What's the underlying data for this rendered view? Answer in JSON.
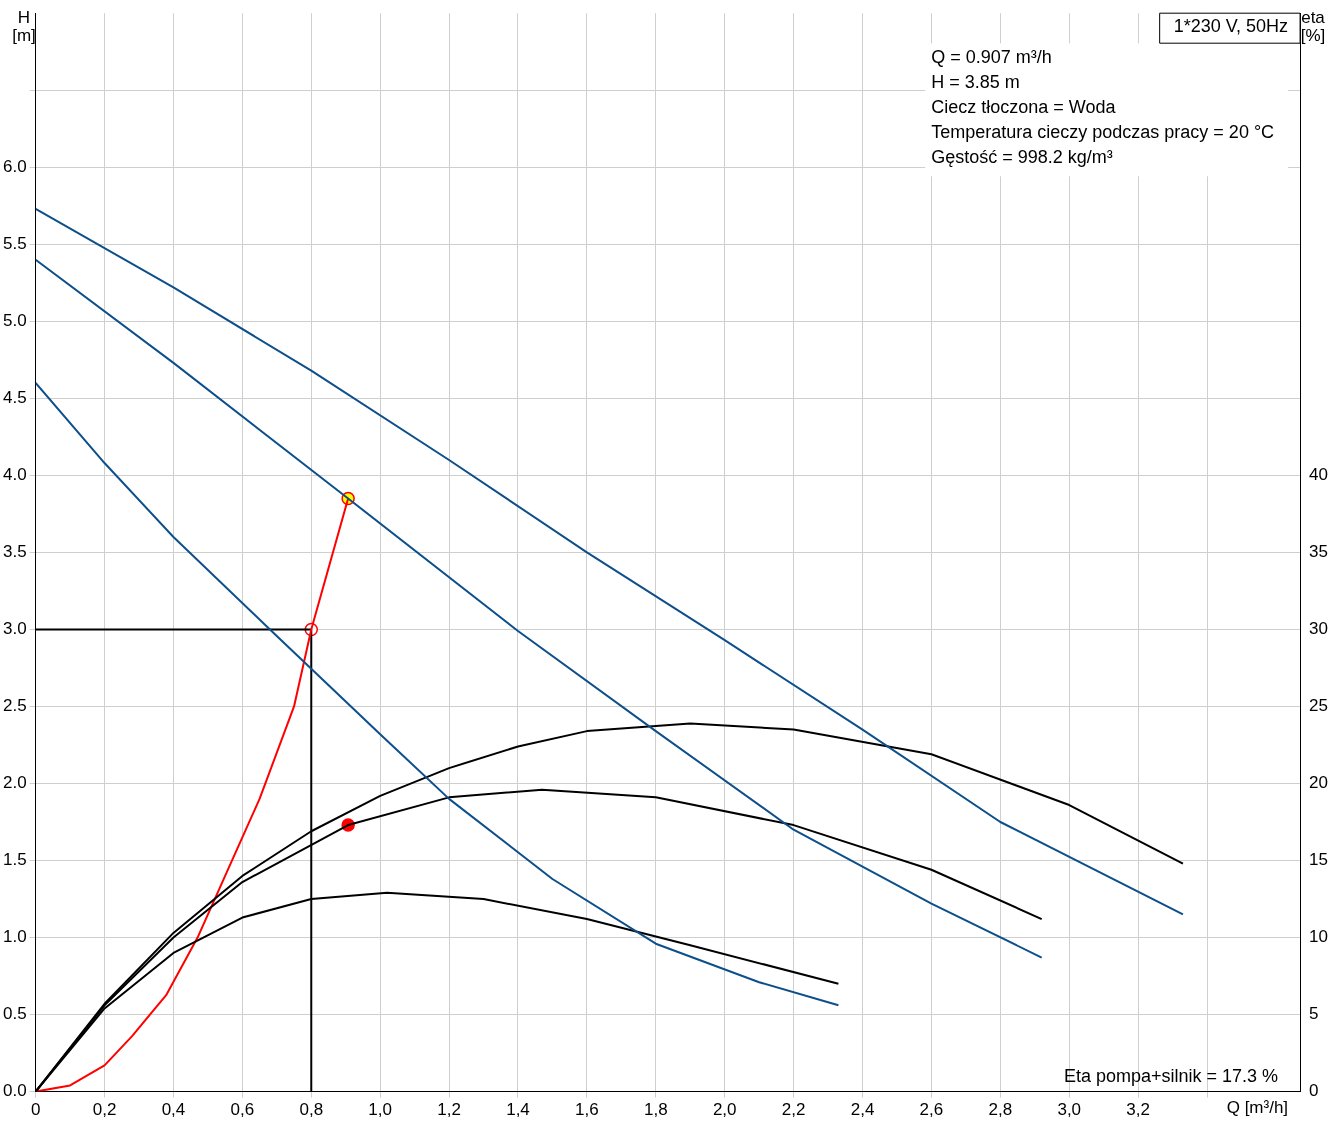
{
  "chart_data": {
    "type": "line",
    "title": "1*230 V, 50Hz",
    "xlabel": "Q [m³/h]",
    "ylabel": "H [m]",
    "y2label": "eta [%]",
    "xlim": [
      0,
      3.67
    ],
    "xticks": [
      0,
      {
        "value": 0.2,
        "label": "0,2"
      },
      {
        "value": 0.4,
        "label": "0,4"
      },
      {
        "value": 0.6,
        "label": "0,6"
      },
      {
        "value": 0.8,
        "label": "0,8"
      },
      {
        "value": 1.0,
        "label": "1,0"
      },
      {
        "value": 1.2,
        "label": "1,2"
      },
      {
        "value": 1.4,
        "label": "1,4"
      },
      {
        "value": 1.6,
        "label": "1,6"
      },
      {
        "value": 1.8,
        "label": "1,8"
      },
      {
        "value": 2.0,
        "label": "2,0"
      },
      {
        "value": 2.2,
        "label": "2,2"
      },
      {
        "value": 2.4,
        "label": "2,4"
      },
      {
        "value": 2.6,
        "label": "2,6"
      },
      {
        "value": 2.8,
        "label": "2,8"
      },
      {
        "value": 3.0,
        "label": "3,0"
      },
      {
        "value": 3.2,
        "label": "3,2"
      },
      {
        "value": 3.4,
        "label": null
      }
    ],
    "ylim": [
      0,
      7
    ],
    "yticks": [
      {
        "value": 0,
        "label": "0.0"
      },
      {
        "value": 0.5,
        "label": "0.5"
      },
      {
        "value": 1,
        "label": "1.0"
      },
      {
        "value": 1.5,
        "label": "1.5"
      },
      {
        "value": 2,
        "label": "2.0"
      },
      {
        "value": 2.5,
        "label": "2.5"
      },
      {
        "value": 3,
        "label": "3.0"
      },
      {
        "value": 3.5,
        "label": "3.5"
      },
      {
        "value": 4,
        "label": "4.0"
      },
      {
        "value": 4.5,
        "label": "4.5"
      },
      {
        "value": 5,
        "label": "5.0"
      },
      {
        "value": 5.5,
        "label": "5.5"
      },
      {
        "value": 6,
        "label": "6.0"
      },
      {
        "value": 6.5,
        "label": null
      }
    ],
    "y2lim": [
      0,
      70
    ],
    "y2ticks": [
      0,
      5,
      10,
      15,
      20,
      25,
      30,
      35,
      40
    ],
    "grid": true,
    "legend": false,
    "annotations": [
      "Q = 0.907 m³/h",
      "H = 3.85 m",
      "Ciecz tłoczona = Woda",
      "Temperatura cieczy podczas pracy = 20 °C",
      "Gęstość = 998.2 kg/m³",
      "Eta pompa+silnik = 17.3 %"
    ],
    "series": [
      {
        "color": "#0d4f8b",
        "x": [
          0,
          0.4,
          0.8,
          1.2,
          1.6,
          2.0,
          2.4,
          2.8,
          3.33
        ],
        "values": [
          5.73,
          5.22,
          4.68,
          4.1,
          3.5,
          2.93,
          2.35,
          1.75,
          1.15
        ]
      },
      {
        "color": "#0d4f8b",
        "x": [
          0,
          0.4,
          0.907,
          1.4,
          1.8,
          2.2,
          2.6,
          2.92
        ],
        "values": [
          5.4,
          4.73,
          3.85,
          2.99,
          2.34,
          1.7,
          1.22,
          0.87
        ]
      },
      {
        "color": "#0d4f8b",
        "x": [
          0,
          0.2,
          0.4,
          0.68,
          1.0,
          1.2,
          1.5,
          1.8,
          2.1,
          2.33
        ],
        "values": [
          4.6,
          4.08,
          3.6,
          3.0,
          2.32,
          1.9,
          1.38,
          0.96,
          0.71,
          0.56
        ]
      },
      {
        "color": "#000000",
        "axis": "y2",
        "x": [
          0,
          0.2,
          0.4,
          0.6,
          0.8,
          1.0,
          1.2,
          1.4,
          1.6,
          1.9,
          2.2,
          2.6,
          3.0,
          3.33
        ],
        "values": [
          0,
          5.7,
          10.3,
          14,
          16.9,
          19.2,
          21,
          22.4,
          23.4,
          23.9,
          23.5,
          21.9,
          18.6,
          14.8
        ]
      },
      {
        "color": "#000000",
        "axis": "y2",
        "x": [
          0,
          0.2,
          0.4,
          0.6,
          0.907,
          1.2,
          1.47,
          1.8,
          2.2,
          2.6,
          2.92
        ],
        "values": [
          0,
          5.6,
          10,
          13.6,
          17.3,
          19.1,
          19.6,
          19.1,
          17.3,
          14.4,
          11.2
        ]
      },
      {
        "color": "#000000",
        "axis": "y2",
        "x": [
          0,
          0.2,
          0.4,
          0.6,
          0.8,
          1.02,
          1.3,
          1.6,
          1.9,
          2.33
        ],
        "values": [
          0,
          5.4,
          9.0,
          11.3,
          12.5,
          12.9,
          12.5,
          11.2,
          9.5,
          7.0
        ]
      },
      {
        "color": "#ff0000",
        "x": [
          0,
          0.1,
          0.2,
          0.28,
          0.38,
          0.47,
          0.55,
          0.65,
          0.75,
          0.8,
          0.907
        ],
        "values": [
          0,
          0.04,
          0.17,
          0.36,
          0.63,
          1.0,
          1.4,
          1.9,
          2.5,
          3.0,
          3.85
        ]
      },
      {
        "color": "#000000",
        "x": [
          0,
          0.8,
          0.8
        ],
        "values": [
          3.0,
          3.0,
          0
        ]
      },
      {
        "type": "scatter",
        "marker": "circle",
        "color": "#ffff00",
        "x": [
          0.907
        ],
        "values": [
          3.85
        ]
      },
      {
        "type": "scatter",
        "marker": "circle",
        "color": "#ff0000",
        "axis": "y2",
        "x": [
          0.907
        ],
        "values": [
          17.3
        ]
      },
      {
        "type": "scatter",
        "marker": "circle",
        "color": "#ffffff",
        "x": [
          0.8
        ],
        "values": [
          3.0
        ]
      }
    ]
  }
}
